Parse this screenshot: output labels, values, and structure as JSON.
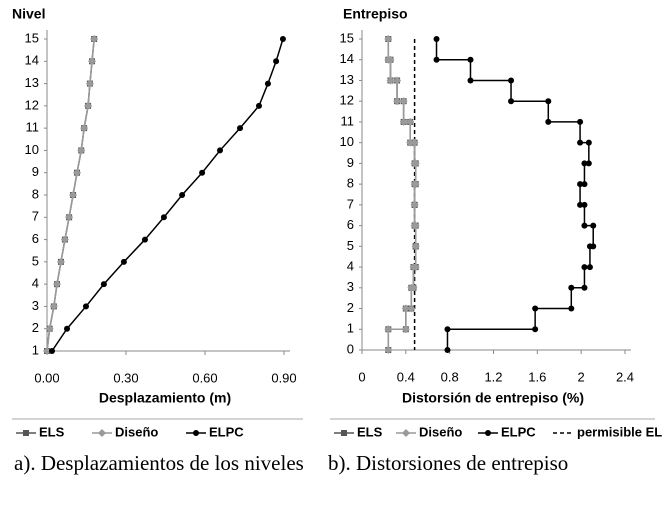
{
  "chart_data": [
    {
      "type": "line",
      "orientation": "horizontal",
      "y_label": "Nivel",
      "x_label": "Desplazamiento (m)",
      "caption": "a). Desplazamientos de los niveles",
      "y": [
        1,
        2,
        3,
        4,
        5,
        6,
        7,
        8,
        9,
        10,
        11,
        12,
        13,
        14,
        15
      ],
      "xlim": [
        0,
        0.9
      ],
      "xticks": [
        {
          "value": 0,
          "label": "0.00"
        },
        {
          "value": 0.3,
          "label": "0.30"
        },
        {
          "value": 0.6,
          "label": "0.60"
        },
        {
          "value": 0.9,
          "label": "0.90"
        }
      ],
      "ylim": [
        1,
        15
      ],
      "yticks": [
        1,
        2,
        3,
        4,
        5,
        6,
        7,
        8,
        9,
        10,
        11,
        12,
        13,
        14,
        15
      ],
      "series": [
        {
          "name": "ELS",
          "color": "#555555",
          "marker": "square",
          "values": [
            0.0,
            0.01,
            0.026,
            0.038,
            0.053,
            0.068,
            0.084,
            0.099,
            0.114,
            0.13,
            0.141,
            0.156,
            0.163,
            0.171,
            0.179
          ]
        },
        {
          "name": "Diseño",
          "color": "#9a9a9a",
          "marker": "diamond",
          "values": [
            0.0,
            0.01,
            0.026,
            0.038,
            0.053,
            0.068,
            0.084,
            0.099,
            0.114,
            0.13,
            0.141,
            0.156,
            0.163,
            0.171,
            0.179
          ]
        },
        {
          "name": "ELPC",
          "color": "#000000",
          "marker": "circle",
          "values": [
            0.019,
            0.076,
            0.148,
            0.216,
            0.292,
            0.372,
            0.444,
            0.513,
            0.589,
            0.657,
            0.733,
            0.805,
            0.839,
            0.87,
            0.896
          ]
        }
      ]
    },
    {
      "type": "step",
      "orientation": "horizontal",
      "y_label": "Entrepiso",
      "x_label": "Distorsión de entrepiso (%)",
      "caption": "b). Distorsiones de entrepiso",
      "y": [
        1,
        2,
        3,
        4,
        5,
        6,
        7,
        8,
        9,
        10,
        11,
        12,
        13,
        14,
        15
      ],
      "xlim": [
        0,
        2.4
      ],
      "xticks": [
        0,
        0.4,
        0.8,
        1.2,
        1.6,
        2,
        2.4
      ],
      "ylim": [
        0,
        15
      ],
      "yticks": [
        0,
        1,
        2,
        3,
        4,
        5,
        6,
        7,
        8,
        9,
        10,
        11,
        12,
        13,
        14,
        15
      ],
      "series": [
        {
          "name": "ELS",
          "color": "#555555",
          "marker": "square",
          "values": [
            0.24,
            0.4,
            0.45,
            0.47,
            0.49,
            0.49,
            0.48,
            0.48,
            0.49,
            0.48,
            0.44,
            0.38,
            0.32,
            0.26,
            0.24
          ]
        },
        {
          "name": "Diseño",
          "color": "#9a9a9a",
          "marker": "diamond",
          "values": [
            0.24,
            0.4,
            0.45,
            0.47,
            0.49,
            0.49,
            0.48,
            0.48,
            0.49,
            0.48,
            0.44,
            0.38,
            0.32,
            0.26,
            0.24
          ]
        },
        {
          "name": "ELPC",
          "color": "#000000",
          "marker": "circle",
          "values": [
            0.78,
            1.58,
            1.91,
            2.03,
            2.08,
            2.11,
            2.03,
            1.99,
            2.03,
            2.07,
            1.99,
            1.7,
            1.36,
            0.99,
            0.68
          ]
        }
      ],
      "reference_line": {
        "name": "permisible ELS",
        "value": 0.48,
        "color": "#000000",
        "dash": true
      }
    }
  ]
}
